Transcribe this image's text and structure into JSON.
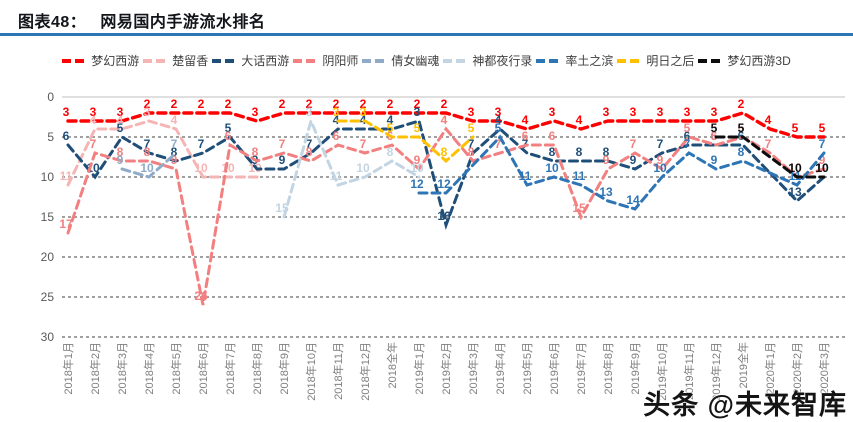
{
  "header": {
    "tag": "图表48：",
    "title": "网易国内手游流水排名"
  },
  "watermark": "头条 @未来智库",
  "chart_data": {
    "type": "line",
    "title": "网易国内手游流水排名",
    "xlabel": "",
    "ylabel": "",
    "y_inverted": true,
    "ylim": [
      0,
      30
    ],
    "yticks": [
      0,
      5,
      10,
      15,
      20,
      25,
      30
    ],
    "grid": "horizontal-dashed",
    "legend_position": "top",
    "line_style": "dashed",
    "categories": [
      "2018年1月",
      "2018年2月",
      "2018年3月",
      "2018年4月",
      "2018年5月",
      "2018年6月",
      "2018年7月",
      "2018年8月",
      "2018年9月",
      "2018年10月",
      "2018年11月",
      "2018年12月",
      "2018全年",
      "2019年1月",
      "2019年2月",
      "2019年3月",
      "2019年4月",
      "2019年5月",
      "2019年6月",
      "2019年7月",
      "2019年8月",
      "2019年9月",
      "2019年10月",
      "2019年11月",
      "2019年12月",
      "2019全年",
      "2020年1月",
      "2020年2月",
      "2020年3月"
    ],
    "series": [
      {
        "name": "梦幻西游",
        "color": "#ff0000",
        "values": [
          3,
          3,
          3,
          2,
          2,
          2,
          2,
          3,
          2,
          2,
          2,
          2,
          2,
          2,
          2,
          3,
          3,
          4,
          3,
          4,
          3,
          3,
          3,
          3,
          3,
          2,
          4,
          5,
          5
        ]
      },
      {
        "name": "楚留香",
        "color": "#f5b5b5",
        "values": [
          11,
          4,
          4,
          3,
          4,
          10,
          10,
          10,
          null,
          null,
          null,
          null,
          null,
          null,
          null,
          null,
          null,
          null,
          null,
          null,
          null,
          null,
          null,
          null,
          null,
          null,
          null,
          null,
          null
        ]
      },
      {
        "name": "大话西游",
        "color": "#1f4e79",
        "values": [
          6,
          10,
          5,
          7,
          8,
          7,
          5,
          9,
          9,
          7,
          4,
          4,
          4,
          3,
          16,
          7,
          4,
          7,
          8,
          8,
          8,
          9,
          7,
          6,
          6,
          6,
          null,
          13,
          10
        ]
      },
      {
        "name": "阴阳师",
        "color": "#f28080",
        "values": [
          17,
          7,
          8,
          8,
          9,
          26,
          6,
          8,
          7,
          8,
          6,
          7,
          6,
          9,
          4,
          8,
          7,
          6,
          6,
          15,
          9,
          7,
          9,
          5,
          6,
          5,
          7,
          10,
          9
        ]
      },
      {
        "name": "倩女幽魂",
        "color": "#8fabc8",
        "values": [
          null,
          null,
          9,
          10,
          7,
          null,
          null,
          null,
          null,
          null,
          null,
          null,
          null,
          null,
          null,
          null,
          null,
          null,
          null,
          null,
          null,
          null,
          null,
          null,
          null,
          null,
          null,
          null,
          null
        ]
      },
      {
        "name": "神都夜行录",
        "color": "#c3d5e2",
        "values": [
          null,
          null,
          null,
          null,
          null,
          null,
          null,
          null,
          15,
          3,
          11,
          10,
          8,
          10,
          null,
          null,
          null,
          null,
          null,
          null,
          null,
          null,
          null,
          null,
          null,
          null,
          null,
          null,
          null
        ]
      },
      {
        "name": "率土之滨",
        "color": "#2e75b6",
        "values": [
          null,
          null,
          null,
          null,
          null,
          null,
          null,
          null,
          null,
          null,
          null,
          null,
          null,
          12,
          12,
          null,
          5,
          11,
          10,
          11,
          13,
          14,
          10,
          7,
          9,
          8,
          null,
          11,
          7
        ]
      },
      {
        "name": "明日之后",
        "color": "#ffc000",
        "values": [
          null,
          null,
          null,
          null,
          null,
          null,
          null,
          null,
          null,
          null,
          3,
          3,
          5,
          5,
          8,
          5,
          null,
          null,
          null,
          null,
          null,
          null,
          null,
          null,
          null,
          null,
          null,
          null,
          null
        ]
      },
      {
        "name": "梦幻西游3D",
        "color": "#0d0d0d",
        "values": [
          null,
          null,
          null,
          null,
          null,
          null,
          null,
          null,
          null,
          null,
          null,
          null,
          null,
          null,
          null,
          null,
          null,
          null,
          null,
          null,
          null,
          null,
          null,
          null,
          5,
          5,
          null,
          10,
          10
        ]
      }
    ]
  }
}
